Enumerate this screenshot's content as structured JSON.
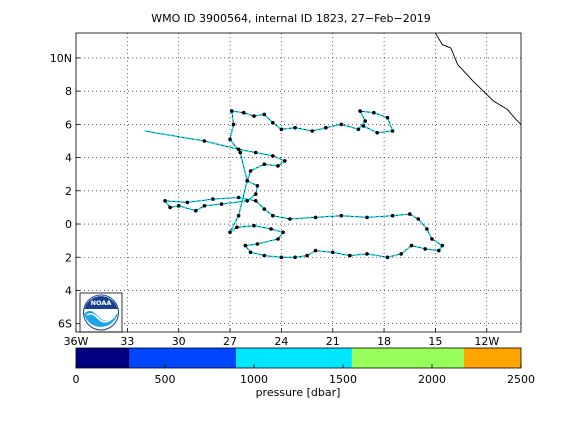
{
  "title": "WMO ID 3900564, internal ID 1823, 27−Feb−2019",
  "map": {
    "lon_range": [
      -36,
      -10
    ],
    "lat_range": [
      -6.5,
      11.5
    ],
    "lat_ticks": [
      {
        "value": 10,
        "label": "10N"
      },
      {
        "value": 8,
        "label": "8"
      },
      {
        "value": 6,
        "label": "6"
      },
      {
        "value": 4,
        "label": "4"
      },
      {
        "value": 2,
        "label": "2"
      },
      {
        "value": 0,
        "label": "0"
      },
      {
        "value": -2,
        "label": "2"
      },
      {
        "value": -4,
        "label": "4"
      },
      {
        "value": -6,
        "label": "6S"
      }
    ],
    "lon_ticks": [
      {
        "value": -36,
        "label": "36W"
      },
      {
        "value": -33,
        "label": "33"
      },
      {
        "value": -30,
        "label": "30"
      },
      {
        "value": -27,
        "label": "27"
      },
      {
        "value": -24,
        "label": "24"
      },
      {
        "value": -21,
        "label": "21"
      },
      {
        "value": -18,
        "label": "18"
      },
      {
        "value": -15,
        "label": "15"
      },
      {
        "value": -12,
        "label": "12W"
      }
    ],
    "grid": "dotted",
    "logo": "noaa-logo",
    "coastline": [
      [
        -15.0,
        11.5
      ],
      [
        -14.6,
        10.8
      ],
      [
        -14.1,
        10.6
      ],
      [
        -13.7,
        9.6
      ],
      [
        -12.8,
        8.6
      ],
      [
        -11.6,
        7.4
      ],
      [
        -10.8,
        6.9
      ],
      [
        -10.3,
        6.3
      ],
      [
        -10.0,
        6.0
      ]
    ]
  },
  "chart_data": {
    "type": "scatter",
    "title": "WMO ID 3900564, internal ID 1823, 27−Feb−2019",
    "xlabel": "",
    "ylabel": "",
    "series": [
      {
        "trajectory": [
          [
            -32.0,
            5.6
          ],
          [
            -28.5,
            5.0
          ],
          [
            -26.5,
            4.5
          ],
          [
            -25.5,
            4.3
          ],
          [
            -24.5,
            4.1
          ],
          [
            -23.8,
            3.8
          ],
          [
            -24.2,
            3.5
          ],
          [
            -25.0,
            3.6
          ],
          [
            -25.8,
            3.2
          ],
          [
            -26.0,
            2.6
          ],
          [
            -25.4,
            2.3
          ],
          [
            -25.5,
            1.8
          ],
          [
            -26.0,
            1.4
          ],
          [
            -27.5,
            1.2
          ],
          [
            -28.5,
            1.1
          ],
          [
            -29.0,
            0.8
          ],
          [
            -30.0,
            1.1
          ],
          [
            -30.5,
            1.0
          ],
          [
            -30.8,
            1.4
          ],
          [
            -29.5,
            1.3
          ],
          [
            -28.0,
            1.5
          ],
          [
            -26.5,
            1.6
          ],
          [
            -25.5,
            1.4
          ],
          [
            -25.0,
            0.9
          ],
          [
            -24.5,
            0.5
          ],
          [
            -23.5,
            0.3
          ],
          [
            -22.0,
            0.4
          ],
          [
            -20.5,
            0.5
          ],
          [
            -19.0,
            0.4
          ],
          [
            -17.5,
            0.5
          ],
          [
            -16.5,
            0.6
          ],
          [
            -16.0,
            0.3
          ],
          [
            -15.5,
            -0.3
          ],
          [
            -15.2,
            -0.9
          ],
          [
            -14.6,
            -1.3
          ],
          [
            -14.8,
            -1.6
          ],
          [
            -15.6,
            -1.5
          ],
          [
            -16.4,
            -1.3
          ],
          [
            -17.0,
            -1.8
          ],
          [
            -17.8,
            -2.0
          ],
          [
            -19.0,
            -1.8
          ],
          [
            -20.0,
            -1.9
          ],
          [
            -21.0,
            -1.7
          ],
          [
            -22.0,
            -1.6
          ],
          [
            -22.5,
            -1.9
          ],
          [
            -23.2,
            -2.0
          ],
          [
            -24.0,
            -2.0
          ],
          [
            -25.0,
            -1.9
          ],
          [
            -25.8,
            -1.7
          ],
          [
            -26.1,
            -1.3
          ],
          [
            -25.4,
            -1.2
          ],
          [
            -24.2,
            -0.9
          ],
          [
            -23.9,
            -0.5
          ],
          [
            -24.6,
            -0.3
          ],
          [
            -25.6,
            -0.1
          ],
          [
            -26.6,
            -0.2
          ],
          [
            -27.0,
            -0.5
          ],
          [
            -26.5,
            0.5
          ],
          [
            -26.0,
            2.6
          ],
          [
            -26.4,
            4.3
          ],
          [
            -27.0,
            5.1
          ],
          [
            -26.8,
            6.0
          ],
          [
            -26.9,
            6.8
          ],
          [
            -26.2,
            6.7
          ],
          [
            -25.6,
            6.5
          ],
          [
            -25.0,
            6.6
          ],
          [
            -24.5,
            6.1
          ],
          [
            -24.0,
            5.7
          ],
          [
            -23.2,
            5.8
          ],
          [
            -22.2,
            5.6
          ],
          [
            -21.4,
            5.8
          ],
          [
            -20.5,
            6.0
          ],
          [
            -19.5,
            5.7
          ],
          [
            -19.1,
            6.2
          ],
          [
            -19.4,
            6.8
          ],
          [
            -18.6,
            6.7
          ],
          [
            -17.8,
            6.4
          ],
          [
            -17.5,
            5.6
          ],
          [
            -18.4,
            5.5
          ],
          [
            -19.2,
            5.9
          ]
        ]
      }
    ],
    "colorbar": {
      "label": "pressure [dbar]",
      "min": 0,
      "max": 2500,
      "ticks": [
        0,
        500,
        1000,
        1500,
        2000,
        2500
      ],
      "bins": [
        {
          "from": 0,
          "to": 300,
          "color": "#000080"
        },
        {
          "from": 300,
          "to": 900,
          "color": "#0046ff"
        },
        {
          "from": 900,
          "to": 1550,
          "color": "#00e6ff"
        },
        {
          "from": 1550,
          "to": 2180,
          "color": "#96ff5a"
        },
        {
          "from": 2180,
          "to": 2500,
          "color": "#ffa500"
        }
      ]
    }
  }
}
